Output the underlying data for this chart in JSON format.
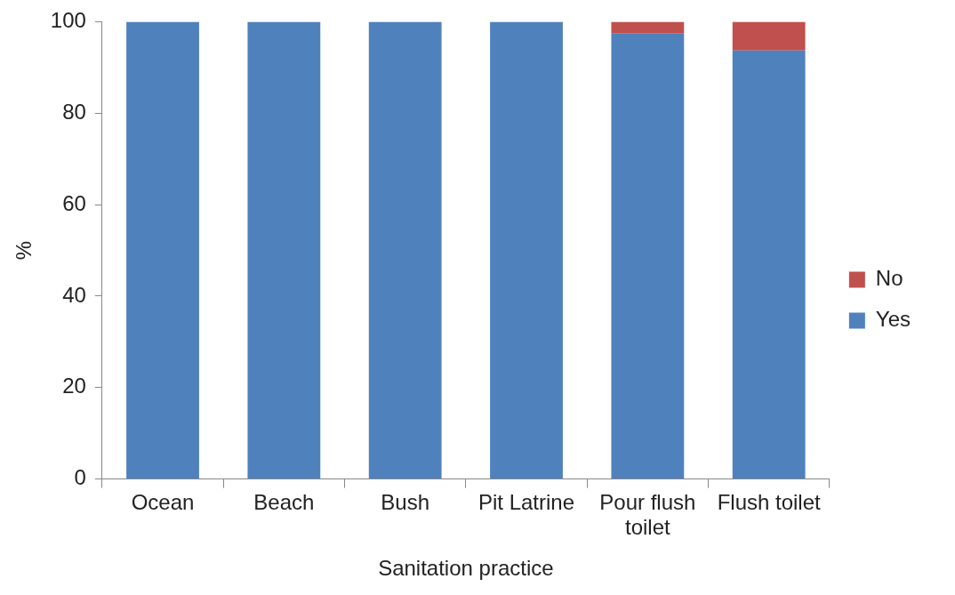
{
  "chart_data": {
    "type": "bar",
    "stacked": true,
    "xlabel": "Sanitation practice",
    "ylabel": "%",
    "categories": [
      "Ocean",
      "Beach",
      "Bush",
      "Pit Latrine",
      "Pour flush toilet",
      "Flush toilet"
    ],
    "series": [
      {
        "name": "Yes",
        "color": "#4f81bd",
        "values": [
          100,
          100,
          100,
          100,
          97.4,
          93.7
        ]
      },
      {
        "name": "No",
        "color": "#c0504d",
        "values": [
          0,
          0,
          0,
          0,
          2.6,
          6.3
        ]
      }
    ],
    "ylim": [
      0,
      100
    ],
    "yticks": [
      0,
      20,
      40,
      60,
      80,
      100
    ],
    "grid": false,
    "legend": "right"
  }
}
